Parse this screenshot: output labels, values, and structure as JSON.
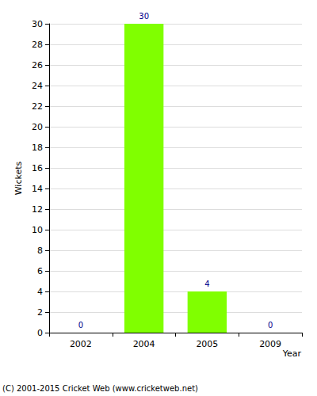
{
  "chart_data": {
    "type": "bar",
    "categories": [
      "2002",
      "2004",
      "2005",
      "2009"
    ],
    "values": [
      0,
      30,
      4,
      0
    ],
    "color": "#80ff00",
    "xlabel": "Year",
    "ylabel": "Wickets",
    "ylim": [
      0,
      30
    ],
    "yticks": [
      0,
      2,
      4,
      6,
      8,
      10,
      12,
      14,
      16,
      18,
      20,
      22,
      24,
      26,
      28,
      30
    ],
    "grid": true,
    "data_labels": true,
    "annotations": [
      "(C) 2001-2015 Cricket Web (www.cricketweb.net)"
    ]
  }
}
